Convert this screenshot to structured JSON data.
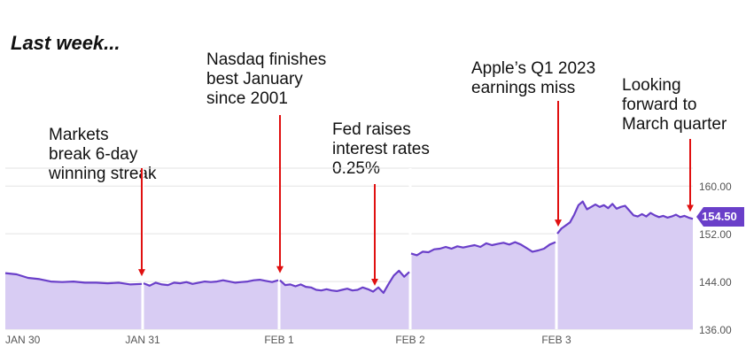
{
  "title": "Last week...",
  "annotations": [
    {
      "id": "streak",
      "text": "Markets\nbreak 6-day\nwinning streak",
      "date": "JAN 31"
    },
    {
      "id": "nasdaq",
      "text": "Nasdaq finishes\nbest January\nsince 2001",
      "date": "FEB 1"
    },
    {
      "id": "fed",
      "text": "Fed raises\ninterest rates\n0.25%",
      "date": "FEB 1 (late)"
    },
    {
      "id": "apple",
      "text": "Apple’s Q1 2023\nearnings miss",
      "date": "FEB 3"
    },
    {
      "id": "march",
      "text": "Looking\nforward to\nMarch quarter",
      "date": "FEB 3 (close)"
    }
  ],
  "colors": {
    "line": "#6a3fc9",
    "area": "#d8ccf3",
    "arrow": "#e01010",
    "badge": "#6a3fc9",
    "grid": "#e3e3e3",
    "axis_text": "#555555"
  },
  "chart_data": {
    "type": "area",
    "title": "",
    "xlabel": "",
    "ylabel": "",
    "ylim": [
      136,
      163
    ],
    "y_ticks": [
      "160.00",
      "152.00",
      "144.00",
      "136.00"
    ],
    "x_ticks": [
      "JAN 30",
      "JAN 31",
      "FEB 1",
      "FEB 2",
      "FEB 3"
    ],
    "last_price": "154.50",
    "grid": true,
    "series": [
      {
        "sessions": [
          {
            "day": "JAN 30",
            "values": [
              145.4,
              145.2,
              144.6,
              144.4,
              144.0,
              143.9,
              144.0,
              143.8,
              143.8,
              143.7,
              143.8,
              143.5,
              143.6
            ]
          },
          {
            "day": "JAN 31",
            "values": [
              143.7,
              143.3,
              143.8,
              143.5,
              143.4,
              143.8,
              143.7,
              143.9,
              143.6,
              143.8,
              144.0,
              143.9,
              144.0,
              144.2,
              144.0,
              143.8,
              143.9,
              144.0,
              144.2,
              144.3,
              144.1,
              143.9,
              144.2
            ]
          },
          {
            "day": "FEB 1",
            "values": [
              144.2,
              143.4,
              143.5,
              143.2,
              143.5,
              143.1,
              143.0,
              142.6,
              142.5,
              142.7,
              142.5,
              142.4,
              142.6,
              142.8,
              142.5,
              142.6,
              143.0,
              142.7,
              142.3,
              143.0,
              142.1,
              143.6,
              145.0,
              145.8,
              144.8,
              145.6
            ]
          },
          {
            "day": "FEB 2",
            "values": [
              148.7,
              148.4,
              149.0,
              148.9,
              149.4,
              149.5,
              149.8,
              149.5,
              149.9,
              149.7,
              149.9,
              150.1,
              149.8,
              150.4,
              150.1,
              150.3,
              150.5,
              150.2,
              150.6,
              150.2,
              149.6,
              149.0,
              149.2,
              149.5,
              150.2,
              150.6
            ]
          },
          {
            "day": "FEB 3",
            "values": [
              152.0,
              152.9,
              153.4,
              153.9,
              155.2,
              156.8,
              157.4,
              156.1,
              156.5,
              156.9,
              156.5,
              156.8,
              156.3,
              157.0,
              156.2,
              156.5,
              156.7,
              155.9,
              155.1,
              154.9,
              155.3,
              154.9,
              155.5,
              155.1,
              154.8,
              155.0,
              154.7,
              154.9,
              155.2,
              154.8,
              155.0,
              154.7,
              154.5
            ]
          }
        ]
      }
    ]
  }
}
